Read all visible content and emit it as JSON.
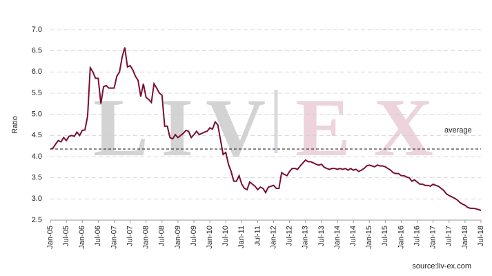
{
  "chart_data": {
    "type": "line",
    "y_label": "Ratio",
    "source": "source:liv-ex.com",
    "watermark": {
      "left": "LIV",
      "right": "EX"
    },
    "average": {
      "label": "average",
      "value": 4.18
    },
    "ylim": [
      2.5,
      7.0
    ],
    "yticks": [
      2.5,
      {
        "value": 3,
        "label": "3.0"
      },
      3.5,
      {
        "value": 4,
        "label": "4.0"
      },
      4.5,
      {
        "value": 5,
        "label": "5.0"
      },
      5.5,
      {
        "value": 6,
        "label": "6.0"
      },
      6.5,
      {
        "value": 7,
        "label": "7.0"
      }
    ],
    "grid": true,
    "categories": [
      "Jan-05",
      null,
      null,
      null,
      null,
      null,
      "Jul-05",
      null,
      null,
      null,
      null,
      null,
      "Jan-06",
      null,
      null,
      null,
      null,
      null,
      "Jul-06",
      null,
      null,
      null,
      null,
      null,
      "Jan-07",
      null,
      null,
      null,
      null,
      null,
      "Jul-07",
      null,
      null,
      null,
      null,
      null,
      "Jan-08",
      null,
      null,
      null,
      null,
      null,
      "Jul-08",
      null,
      null,
      null,
      null,
      null,
      "Jan-09",
      null,
      null,
      null,
      null,
      null,
      "Jul-09",
      null,
      null,
      null,
      null,
      null,
      "Jan-10",
      null,
      null,
      null,
      null,
      null,
      "Jul-10",
      null,
      null,
      null,
      null,
      null,
      "Jan-11",
      null,
      null,
      null,
      null,
      null,
      "Jul-11",
      null,
      null,
      null,
      null,
      null,
      "Jan-12",
      null,
      null,
      null,
      null,
      null,
      "Jul-12",
      null,
      null,
      null,
      null,
      null,
      "Jan-13",
      null,
      null,
      null,
      null,
      null,
      "Jul-13",
      null,
      null,
      null,
      null,
      null,
      "Jan-14",
      null,
      null,
      null,
      null,
      null,
      "Jul-14",
      null,
      null,
      null,
      null,
      null,
      "Jan-15",
      null,
      null,
      null,
      null,
      null,
      "Jul-15",
      null,
      null,
      null,
      null,
      null,
      "Jan-16",
      null,
      null,
      null,
      null,
      null,
      "Jul-16",
      null,
      null,
      null,
      null,
      null,
      "Jan-17",
      null,
      null,
      null,
      null,
      null,
      "Jul-17",
      null,
      null,
      null,
      null,
      null,
      "Jan-18",
      null,
      null,
      null,
      null,
      null,
      "Jul-18"
    ],
    "color": "#7b0c35",
    "values": [
      4.18,
      4.2,
      4.3,
      4.38,
      4.35,
      4.45,
      4.38,
      4.48,
      4.5,
      4.48,
      4.58,
      4.5,
      4.62,
      4.63,
      4.95,
      6.1,
      6.0,
      5.85,
      5.85,
      5.25,
      5.65,
      5.68,
      5.62,
      5.62,
      5.62,
      5.9,
      6.0,
      6.35,
      6.58,
      6.12,
      6.15,
      6.05,
      5.9,
      5.8,
      5.42,
      5.72,
      5.4,
      5.35,
      5.28,
      5.72,
      5.62,
      5.5,
      5.45,
      4.72,
      4.72,
      4.45,
      4.42,
      4.52,
      4.45,
      4.5,
      4.55,
      4.62,
      4.6,
      4.45,
      4.52,
      4.6,
      4.52,
      4.55,
      4.58,
      4.6,
      4.68,
      4.65,
      4.82,
      4.75,
      4.4,
      4.05,
      4.1,
      3.82,
      3.65,
      3.42,
      3.42,
      3.55,
      3.35,
      3.25,
      3.22,
      3.4,
      3.35,
      3.3,
      3.22,
      3.28,
      3.25,
      3.15,
      3.28,
      3.3,
      3.32,
      3.25,
      3.25,
      3.62,
      3.58,
      3.55,
      3.65,
      3.72,
      3.72,
      3.7,
      3.78,
      3.85,
      3.92,
      3.88,
      3.88,
      3.85,
      3.82,
      3.8,
      3.82,
      3.75,
      3.72,
      3.7,
      3.72,
      3.72,
      3.7,
      3.72,
      3.7,
      3.72,
      3.68,
      3.72,
      3.68,
      3.7,
      3.65,
      3.68,
      3.72,
      3.78,
      3.8,
      3.78,
      3.76,
      3.8,
      3.78,
      3.78,
      3.76,
      3.72,
      3.68,
      3.62,
      3.6,
      3.6,
      3.55,
      3.55,
      3.52,
      3.5,
      3.42,
      3.45,
      3.4,
      3.35,
      3.35,
      3.32,
      3.32,
      3.3,
      3.35,
      3.32,
      3.3,
      3.25,
      3.2,
      3.12,
      3.08,
      3.05,
      3.02,
      2.98,
      2.92,
      2.88,
      2.85,
      2.8,
      2.78,
      2.78,
      2.77,
      2.75,
      2.73
    ]
  }
}
